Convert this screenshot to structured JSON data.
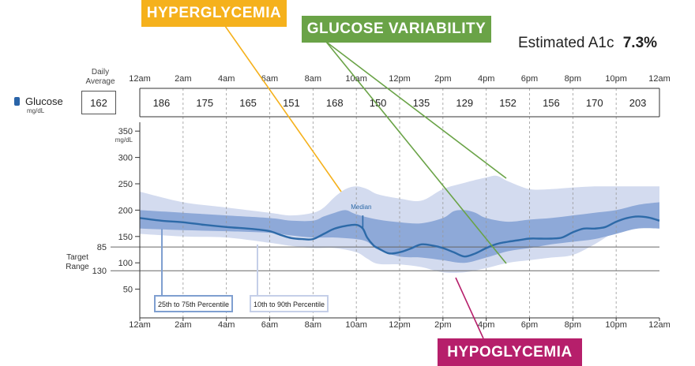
{
  "callouts": {
    "hyperglycemia": {
      "label": "HYPERGLYCEMIA",
      "color": "#f5b11c"
    },
    "glucose_variability": {
      "label": "GLUCOSE VARIABILITY",
      "color": "#6aa347"
    },
    "hypoglycemia": {
      "label": "HYPOGLYCEMIA",
      "color": "#b61f6b"
    }
  },
  "a1c": {
    "label": "Estimated A1c",
    "value": "7.3%"
  },
  "daily_average": {
    "label": "Daily Average",
    "value": "162"
  },
  "glucose": {
    "label": "Glucose",
    "unit": "mg/dL"
  },
  "target_range_label": "Target Range",
  "colors": {
    "median_line": "#2d6aa8",
    "band_25_75": "#8ea9d8",
    "band_10_90": "#d3dbef",
    "target_lines": "#666666",
    "grid": "#999999"
  },
  "chart_data": {
    "type": "area",
    "x_tick_labels": [
      "12am",
      "2am",
      "4am",
      "6am",
      "8am",
      "10am",
      "12pm",
      "2pm",
      "4pm",
      "6pm",
      "8pm",
      "10pm",
      "12am"
    ],
    "xlim": [
      0,
      24
    ],
    "ylim": [
      0,
      350
    ],
    "y_ticks": [
      50,
      100,
      150,
      200,
      250,
      300,
      350
    ],
    "y_tick_labels": [
      "50",
      "100",
      "150",
      "200",
      "250",
      "300",
      "350"
    ],
    "y_unit_label": "mg/dL",
    "target_range": [
      85,
      130
    ],
    "target_tick_labels": [
      "130",
      "85"
    ],
    "hourly_averages": {
      "labels": [
        "186",
        "175",
        "165",
        "151",
        "168",
        "150",
        "135",
        "129",
        "152",
        "156",
        "170",
        "203"
      ]
    },
    "median_label": "Median",
    "median_marker_hour": 10.3,
    "legend": [
      "25th to 75th Percentile",
      "10th to 90th Percentile"
    ],
    "series": [
      {
        "name": "Median",
        "x": [
          0,
          1,
          2,
          3,
          4,
          5,
          5.5,
          6,
          6.5,
          7,
          7.5,
          8,
          8.5,
          9,
          9.5,
          10,
          10.3,
          10.5,
          10.8,
          11,
          11.5,
          12,
          12.5,
          13,
          13.5,
          14,
          14.5,
          15,
          15.5,
          16,
          16.5,
          17,
          17.5,
          18,
          18.5,
          19,
          19.5,
          20,
          20.5,
          21,
          21.5,
          22,
          22.5,
          23,
          23.5,
          24
        ],
        "y": [
          185,
          180,
          177,
          172,
          168,
          165,
          163,
          160,
          153,
          147,
          145,
          145,
          155,
          165,
          170,
          172,
          165,
          148,
          133,
          128,
          118,
          120,
          127,
          135,
          133,
          128,
          120,
          112,
          118,
          128,
          136,
          140,
          143,
          146,
          146,
          146,
          148,
          158,
          165,
          165,
          168,
          178,
          185,
          188,
          186,
          180
        ]
      },
      {
        "name": "25th Percentile",
        "x": [
          0,
          2,
          4,
          6,
          7,
          8,
          9,
          10,
          10.5,
          11,
          12,
          13,
          14,
          15,
          16,
          17,
          18,
          19,
          20,
          21,
          22,
          23,
          24
        ],
        "y": [
          165,
          162,
          160,
          157,
          152,
          148,
          148,
          145,
          140,
          125,
          112,
          110,
          105,
          100,
          110,
          122,
          128,
          135,
          140,
          145,
          155,
          165,
          165
        ]
      },
      {
        "name": "75th Percentile",
        "x": [
          0,
          2,
          4,
          6,
          7,
          8,
          8.5,
          9,
          9.5,
          10,
          11,
          12,
          13,
          14,
          14.5,
          15,
          15.5,
          16,
          17,
          18,
          19,
          20,
          21,
          22,
          23,
          24
        ],
        "y": [
          200,
          195,
          190,
          185,
          180,
          180,
          188,
          195,
          200,
          192,
          182,
          177,
          175,
          185,
          198,
          200,
          195,
          185,
          178,
          182,
          185,
          190,
          195,
          200,
          210,
          215
        ]
      },
      {
        "name": "10th Percentile",
        "x": [
          0,
          2,
          4,
          6,
          7,
          8,
          9,
          10,
          10.5,
          11,
          12,
          13,
          14,
          15,
          16,
          17,
          18,
          19,
          20,
          21,
          22,
          23,
          24
        ],
        "y": [
          155,
          150,
          148,
          138,
          132,
          128,
          128,
          120,
          108,
          98,
          97,
          92,
          82,
          82,
          90,
          100,
          105,
          110,
          115,
          135,
          160,
          175,
          178
        ]
      },
      {
        "name": "90th Percentile",
        "x": [
          0,
          2,
          4,
          6,
          7,
          8,
          8.5,
          9,
          9.5,
          10,
          10.5,
          11,
          12,
          13,
          14,
          15,
          16,
          16.5,
          17,
          18,
          19,
          20,
          21,
          22,
          23,
          24
        ],
        "y": [
          235,
          215,
          205,
          195,
          190,
          195,
          205,
          225,
          240,
          245,
          240,
          230,
          222,
          218,
          240,
          252,
          262,
          265,
          255,
          240,
          240,
          243,
          245,
          245,
          245,
          245
        ]
      }
    ]
  }
}
